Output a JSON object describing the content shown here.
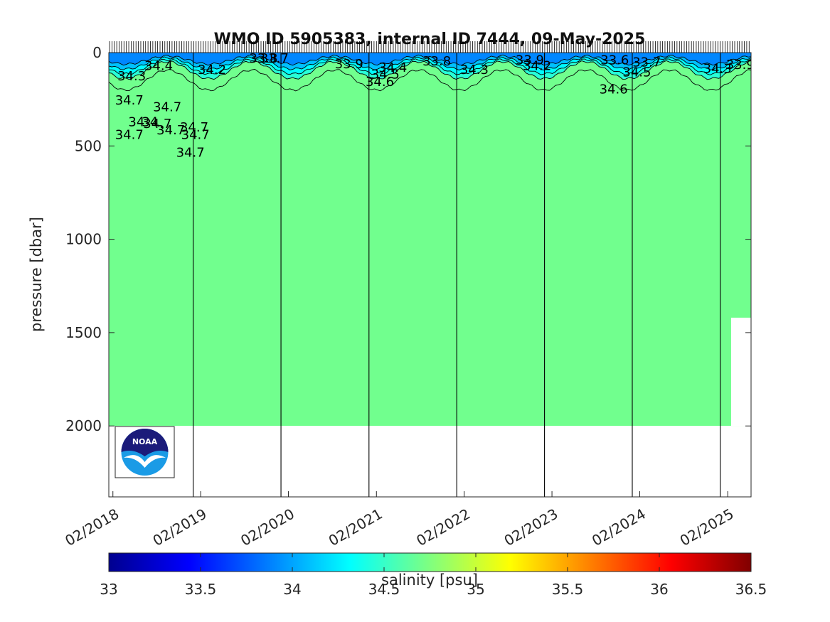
{
  "chart_data": {
    "type": "heatmap",
    "title": "WMO ID 5905383, internal ID 7444, 09-May-2025",
    "ylabel": "pressure [dbar]",
    "ylim": [
      0,
      2380
    ],
    "y_reversed": true,
    "yticks": [
      0,
      500,
      1000,
      1500,
      2000
    ],
    "ytick_labels": [
      "0",
      "500",
      "1000",
      "1500",
      "2000"
    ],
    "xlim": [
      "2018-01-15",
      "2025-05-09"
    ],
    "xtick_dates": [
      "2018-02-01",
      "2019-02-01",
      "2020-02-01",
      "2021-02-01",
      "2022-02-01",
      "2023-02-01",
      "2024-02-01",
      "2025-02-01"
    ],
    "xtick_labels": [
      "02/2018",
      "02/2019",
      "02/2020",
      "02/2021",
      "02/2022",
      "02/2023",
      "02/2024",
      "02/2025"
    ],
    "year_lines": [
      "2019-01-01",
      "2020-01-01",
      "2021-01-01",
      "2022-01-01",
      "2023-01-01",
      "2024-01-01",
      "2025-01-01"
    ],
    "max_pressure": 2000,
    "deep_salinity": 34.7,
    "colorbar": {
      "label": "salinity [psu]",
      "range": [
        33,
        36.5
      ],
      "ticks": [
        33,
        33.5,
        34,
        34.5,
        35,
        35.5,
        36,
        36.5
      ],
      "tick_labels": [
        "33",
        "33.5",
        "34",
        "34.5",
        "35",
        "35.5",
        "36",
        "36.5"
      ],
      "colormap": "jet"
    },
    "contour_labels": [
      {
        "text": "34.4",
        "date": "2018-08-10",
        "p": 40
      },
      {
        "text": "34.3",
        "date": "2018-04-20",
        "p": 95
      },
      {
        "text": "34.2",
        "date": "2019-03-20",
        "p": 60
      },
      {
        "text": "34.7",
        "date": "2018-04-10",
        "p": 225
      },
      {
        "text": "34.7",
        "date": "2018-09-15",
        "p": 260
      },
      {
        "text": "34",
        "date": "2018-05-10",
        "p": 340
      },
      {
        "text": "34",
        "date": "2018-07-05",
        "p": 340
      },
      {
        "text": "34.7",
        "date": "2018-08-05",
        "p": 350
      },
      {
        "text": "34.7",
        "date": "2019-01-05",
        "p": 370
      },
      {
        "text": "34.7",
        "date": "2018-09-30",
        "p": 385
      },
      {
        "text": "34.7",
        "date": "2018-04-10",
        "p": 410
      },
      {
        "text": "34.7",
        "date": "2019-01-10",
        "p": 410
      },
      {
        "text": "34.7",
        "date": "2018-12-20",
        "p": 505
      },
      {
        "text": "33.8",
        "date": "2019-10-20",
        "p": 0
      },
      {
        "text": "33.7",
        "date": "2019-12-05",
        "p": 0
      },
      {
        "text": "33.9",
        "date": "2020-10-10",
        "p": 30
      },
      {
        "text": "34.4",
        "date": "2021-04-10",
        "p": 50
      },
      {
        "text": "34.5",
        "date": "2021-03-10",
        "p": 85
      },
      {
        "text": "34.6",
        "date": "2021-02-15",
        "p": 125
      },
      {
        "text": "33.8",
        "date": "2021-10-10",
        "p": 15
      },
      {
        "text": "34.3",
        "date": "2022-03-15",
        "p": 60
      },
      {
        "text": "33.9",
        "date": "2022-11-01",
        "p": 10
      },
      {
        "text": "34.2",
        "date": "2022-12-01",
        "p": 40
      },
      {
        "text": "33.6",
        "date": "2023-10-20",
        "p": 10
      },
      {
        "text": "33.7",
        "date": "2024-03-01",
        "p": 20
      },
      {
        "text": "34.5",
        "date": "2024-01-20",
        "p": 75
      },
      {
        "text": "34.6",
        "date": "2023-10-15",
        "p": 165
      },
      {
        "text": "34.3",
        "date": "2024-12-20",
        "p": 55
      },
      {
        "text": "33.9",
        "date": "2025-03-25",
        "p": 35
      }
    ]
  }
}
